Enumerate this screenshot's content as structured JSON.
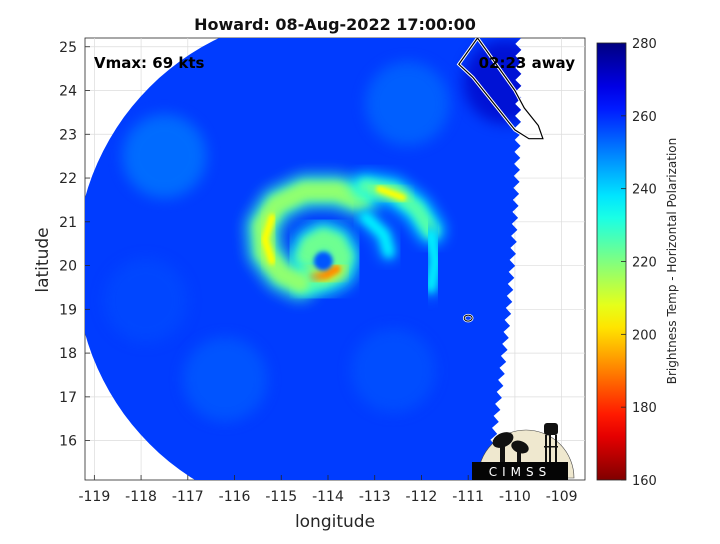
{
  "chart_data": {
    "type": "heatmap",
    "title": "Howard: 08-Aug-2022 17:00:00",
    "xlabel": "longitude",
    "ylabel": "latitude",
    "xlim": [
      -119.2,
      -108.5
    ],
    "ylim": [
      15.1,
      25.2
    ],
    "xticks": [
      -119,
      -118,
      -117,
      -116,
      -115,
      -114,
      -113,
      -112,
      -111,
      -110,
      -109
    ],
    "yticks": [
      16,
      17,
      18,
      19,
      20,
      21,
      22,
      23,
      24,
      25
    ],
    "annotations": {
      "left": "Vmax: 69 kts",
      "right": "02:23 away"
    },
    "logo_text": "CIMSS",
    "colorbar": {
      "label": "Brightness Temp - Horizontal Polarization",
      "min": 160,
      "max": 280,
      "ticks": [
        160,
        180,
        200,
        220,
        240,
        260,
        280
      ],
      "colormap": "jet"
    },
    "storm_center": {
      "lon": -114.1,
      "lat": 20.1
    },
    "swath": {
      "center": {
        "lon": -114.0,
        "lat": 20.0
      },
      "radius_deg": 5.4,
      "east_cutoff_lon": -110.7,
      "background_value": 258
    },
    "coastline": [
      [
        -110.8,
        25.2
      ],
      [
        -110.6,
        24.9
      ],
      [
        -110.4,
        24.6
      ],
      [
        -110.2,
        24.3
      ],
      [
        -110.0,
        24.0
      ],
      [
        -109.8,
        23.6
      ],
      [
        -109.5,
        23.2
      ],
      [
        -109.4,
        22.9
      ],
      [
        -109.7,
        22.9
      ],
      [
        -110.0,
        23.1
      ],
      [
        -110.3,
        23.5
      ],
      [
        -110.6,
        23.9
      ],
      [
        -110.9,
        24.3
      ],
      [
        -111.2,
        24.6
      ]
    ],
    "island": {
      "lon": -111.0,
      "lat": 18.8
    },
    "features": [
      {
        "name": "inner eyewall",
        "points": [
          [
            -114.4,
            19.7
          ],
          [
            -114.1,
            19.75
          ],
          [
            -113.8,
            19.9
          ],
          [
            -113.7,
            20.2
          ],
          [
            -113.85,
            20.5
          ],
          [
            -114.1,
            20.6
          ],
          [
            -114.35,
            20.45
          ],
          [
            -114.45,
            20.2
          ]
        ],
        "value": 222,
        "width": 0.45
      },
      {
        "name": "eyewall hot spot",
        "points": [
          [
            -114.35,
            19.72
          ],
          [
            -114.05,
            19.78
          ],
          [
            -113.82,
            19.92
          ]
        ],
        "value": 192,
        "width": 0.18
      },
      {
        "name": "western band",
        "points": [
          [
            -114.6,
            19.6
          ],
          [
            -115.0,
            19.8
          ],
          [
            -115.35,
            20.3
          ],
          [
            -115.4,
            20.9
          ],
          [
            -115.1,
            21.4
          ],
          [
            -114.5,
            21.7
          ],
          [
            -113.8,
            21.7
          ],
          [
            -113.3,
            21.5
          ]
        ],
        "value": 218,
        "width": 0.4
      },
      {
        "name": "western band core",
        "points": [
          [
            -115.2,
            20.1
          ],
          [
            -115.35,
            20.6
          ],
          [
            -115.2,
            21.1
          ]
        ],
        "value": 205,
        "width": 0.15
      },
      {
        "name": "north band",
        "points": [
          [
            -113.2,
            21.8
          ],
          [
            -112.6,
            21.7
          ],
          [
            -112.1,
            21.3
          ],
          [
            -111.8,
            20.8
          ]
        ],
        "value": 225,
        "width": 0.32
      },
      {
        "name": "north band core",
        "points": [
          [
            -112.9,
            21.75
          ],
          [
            -112.4,
            21.55
          ]
        ],
        "value": 205,
        "width": 0.14
      },
      {
        "name": "outer spiral band",
        "points": [
          [
            -111.8,
            20.7
          ],
          [
            -111.7,
            20.1
          ],
          [
            -111.8,
            19.5
          ]
        ],
        "value": 236,
        "width": 0.22
      },
      {
        "name": "inner band",
        "points": [
          [
            -113.2,
            21.1
          ],
          [
            -112.8,
            20.7
          ],
          [
            -112.7,
            20.3
          ]
        ],
        "value": 236,
        "width": 0.22
      }
    ]
  }
}
